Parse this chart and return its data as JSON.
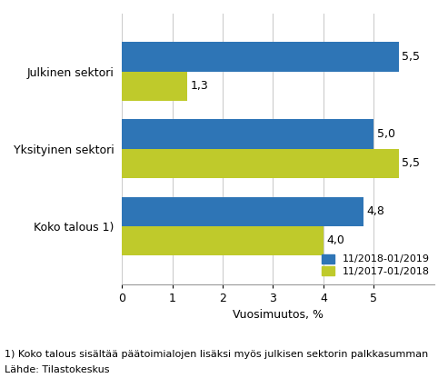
{
  "categories": [
    "Koko talous 1)",
    "Yksityinen sektori",
    "Julkinen sektori"
  ],
  "series": [
    {
      "label": "11/2018-01/2019",
      "color": "#2E75B6",
      "values": [
        4.8,
        5.0,
        5.5
      ]
    },
    {
      "label": "11/2017-01/2018",
      "color": "#BFCA2B",
      "values": [
        4.0,
        5.5,
        1.3
      ]
    }
  ],
  "value_label_fmt": [
    [
      "4,8",
      "5,0",
      "5,5"
    ],
    [
      "4,0",
      "5,5",
      "1,3"
    ]
  ],
  "xlabel": "Vuosimuutos, %",
  "xlim": [
    0,
    6.2
  ],
  "xticks": [
    0,
    1,
    2,
    3,
    4,
    5
  ],
  "footnote1": "1) Koko talous sisältää päätoimialojen lisäksi myös julkisen sektorin palkkasumman",
  "footnote2": "Lähde: Tilastokeskus",
  "bar_height": 0.38,
  "background_color": "#ffffff",
  "grid_color": "#cccccc",
  "text_color": "#000000",
  "axis_fontsize": 9,
  "label_fontsize": 9,
  "legend_fontsize": 8,
  "footnote_fontsize": 8
}
